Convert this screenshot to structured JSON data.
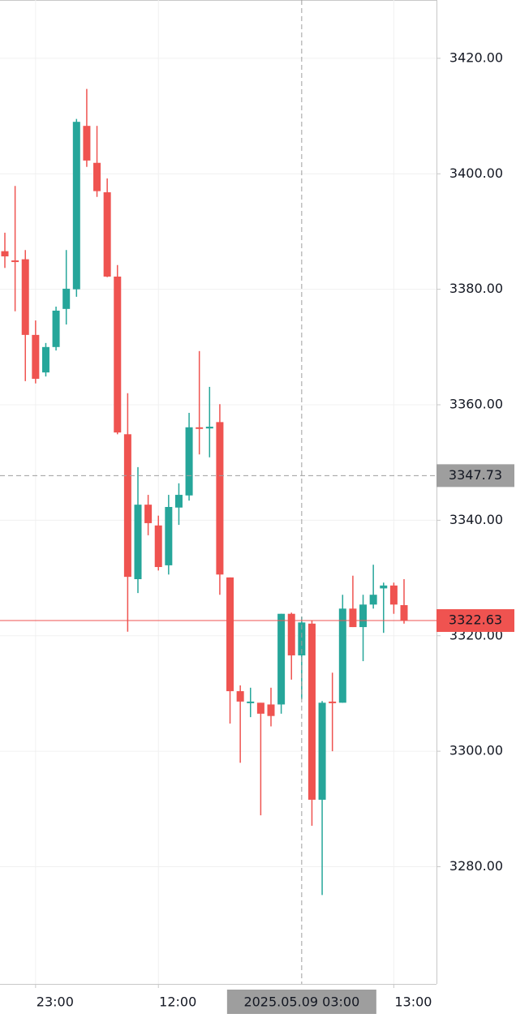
{
  "chart_data": {
    "type": "candlestick",
    "categories": [
      null,
      null,
      null,
      "23:00",
      null,
      null,
      null,
      null,
      null,
      null,
      null,
      null,
      null,
      null,
      null,
      "12:00",
      null,
      null,
      null,
      null,
      null,
      null,
      null,
      null,
      null,
      null,
      null,
      null,
      null,
      "2025.05.09 03:00",
      null,
      null,
      null,
      null,
      null,
      null,
      null,
      null,
      "13:00",
      null
    ],
    "open": [
      3386.6,
      3385.0,
      3385.2,
      3372.1,
      3365.6,
      3370.0,
      3376.6,
      3380.0,
      3408.3,
      3401.9,
      3396.8,
      3382.2,
      3354.9,
      3329.8,
      3342.7,
      3339.1,
      3332.2,
      3342.2,
      3344.3,
      3356.1,
      3355.9,
      3357.0,
      3330.1,
      3310.4,
      3308.4,
      3308.4,
      3308.1,
      3308.1,
      3323.8,
      3316.6,
      3322.1,
      3291.6,
      3308.6,
      3308.4,
      3324.7,
      3321.5,
      3325.4,
      3328.2,
      3328.7,
      3325.3
    ],
    "high": [
      3389.8,
      3397.9,
      3386.8,
      3374.6,
      3370.7,
      3377.0,
      3386.8,
      3409.5,
      3414.7,
      3408.3,
      3399.2,
      3384.2,
      3362.0,
      3349.2,
      3344.4,
      3340.8,
      3344.4,
      3346.4,
      3358.6,
      3369.3,
      3363.1,
      3360.1,
      3330.1,
      3311.4,
      3311.0,
      3308.4,
      3311.0,
      3323.8,
      3324.0,
      3323.3,
      3322.6,
      3308.7,
      3313.6,
      3327.1,
      3330.4,
      3327.1,
      3332.3,
      3329.2,
      3329.2,
      3329.8
    ],
    "low": [
      3383.7,
      3376.2,
      3364.1,
      3363.7,
      3364.9,
      3369.4,
      3373.9,
      3378.7,
      3401.2,
      3396.0,
      3382.1,
      3354.9,
      3320.7,
      3327.4,
      3337.4,
      3331.3,
      3330.6,
      3339.2,
      3343.4,
      3351.4,
      3350.9,
      3327.1,
      3304.8,
      3298.0,
      3305.9,
      3288.9,
      3304.3,
      3306.5,
      3312.4,
      3309.0,
      3287.1,
      3275.1,
      3300.0,
      3308.4,
      3321.5,
      3315.6,
      3324.7,
      3320.5,
      3323.8,
      3322.1
    ],
    "close": [
      3385.7,
      3384.8,
      3372.1,
      3364.5,
      3370.0,
      3376.3,
      3380.1,
      3409.0,
      3402.3,
      3397.0,
      3382.2,
      3355.2,
      3330.2,
      3342.7,
      3339.5,
      3331.9,
      3342.3,
      3344.4,
      3356.1,
      3355.9,
      3356.2,
      3330.6,
      3310.4,
      3308.6,
      3308.6,
      3306.5,
      3306.1,
      3323.8,
      3316.6,
      3322.3,
      3291.6,
      3308.4,
      3308.4,
      3324.7,
      3321.5,
      3325.4,
      3327.1,
      3328.7,
      3325.4,
      3322.63
    ],
    "up_color": "#26a69a",
    "down_color": "#ef5350",
    "ylim": [
      3259.7,
      3430.1
    ],
    "yticks": [
      {
        "value": 3280,
        "label": "3280.00"
      },
      {
        "value": 3300,
        "label": "3300.00"
      },
      {
        "value": 3320,
        "label": "3320.00"
      },
      {
        "value": 3340,
        "label": "3340.00"
      },
      {
        "value": 3360,
        "label": "3360.00"
      },
      {
        "value": 3380,
        "label": "3380.00"
      },
      {
        "value": 3400,
        "label": "3400.00"
      },
      {
        "value": 3420,
        "label": "3420.00"
      }
    ],
    "grid": true,
    "last_price": 3322.63,
    "crosshair": {
      "y": 3347.73,
      "x": "2025.05.09 03:00"
    }
  }
}
